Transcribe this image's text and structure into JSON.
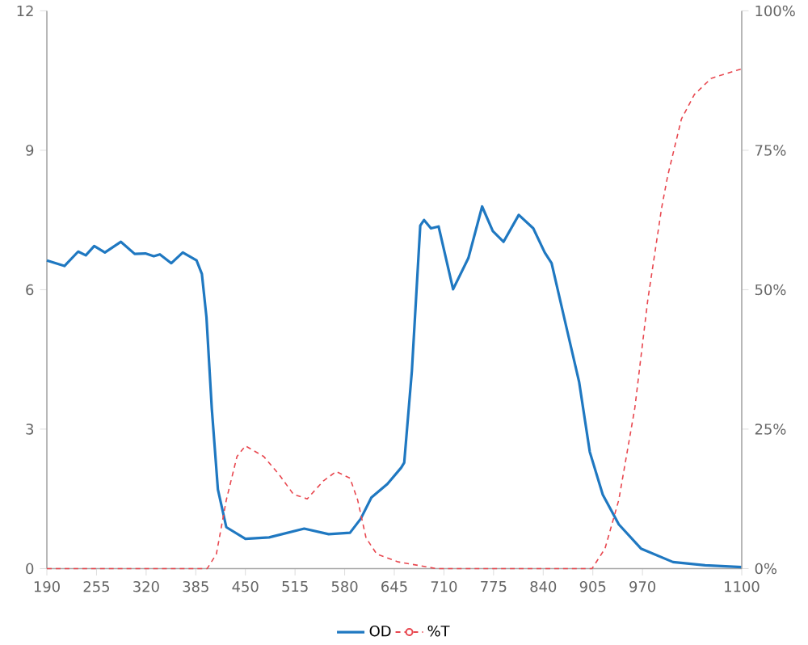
{
  "chart_data": {
    "type": "line",
    "xlim": [
      190,
      1100
    ],
    "xticks": [
      190,
      255,
      320,
      385,
      450,
      515,
      580,
      645,
      710,
      775,
      840,
      905,
      970,
      1100
    ],
    "ylim": [
      0,
      12
    ],
    "yticks": [
      0,
      3,
      6,
      9,
      12
    ],
    "y2lim": [
      0,
      100
    ],
    "y2ticks": [
      {
        "value": 0,
        "label": "0%"
      },
      {
        "value": 25,
        "label": "25%"
      },
      {
        "value": 50,
        "label": "50%"
      },
      {
        "value": 75,
        "label": "75%"
      },
      {
        "value": 100,
        "label": "100%"
      }
    ],
    "legend": "bottom",
    "grid": false,
    "series": [
      {
        "name": "OD",
        "color": "#1f78c1",
        "line_style": "solid",
        "x": [
          190,
          213,
          231,
          241,
          252,
          266,
          287,
          305,
          319,
          330,
          338,
          353,
          368,
          386,
          393,
          399,
          406,
          414,
          425,
          450,
          481,
          527,
          559,
          587,
          601,
          615,
          636,
          654,
          658,
          668,
          679,
          684,
          693,
          703,
          722,
          742,
          760,
          774,
          788,
          808,
          827,
          842,
          851,
          869,
          887,
          901,
          918,
          939,
          968,
          1010,
          1052,
          1100
        ],
        "values": [
          6.63,
          6.51,
          6.82,
          6.74,
          6.94,
          6.8,
          7.03,
          6.77,
          6.78,
          6.72,
          6.76,
          6.57,
          6.8,
          6.63,
          6.34,
          5.41,
          3.44,
          1.7,
          0.89,
          0.64,
          0.67,
          0.86,
          0.74,
          0.77,
          1.07,
          1.53,
          1.82,
          2.17,
          2.28,
          4.25,
          7.38,
          7.5,
          7.32,
          7.36,
          6.01,
          6.68,
          7.79,
          7.26,
          7.03,
          7.61,
          7.32,
          6.8,
          6.57,
          5.29,
          4.02,
          2.51,
          1.59,
          0.95,
          0.43,
          0.14,
          0.07,
          0.03
        ]
      },
      {
        "name": "%T",
        "color": "#e8474f",
        "line_style": "dashed",
        "axis": "y2",
        "x": [
          190,
          400,
          412,
          425,
          439,
          450,
          474,
          495,
          513,
          531,
          552,
          569,
          587,
          597,
          608,
          622,
          650,
          700,
          904,
          921,
          939,
          960,
          977,
          995,
          1003,
          1021,
          1038,
          1060,
          1100
        ],
        "values": [
          0,
          0,
          2.6,
          12.3,
          20.1,
          22.0,
          20.1,
          16.7,
          13.3,
          12.5,
          15.7,
          17.4,
          16.2,
          12.3,
          5.5,
          2.6,
          1.2,
          0,
          0,
          3.6,
          12.3,
          28.8,
          48.2,
          64.6,
          70.4,
          80.6,
          85.0,
          87.9,
          89.6
        ]
      }
    ]
  }
}
